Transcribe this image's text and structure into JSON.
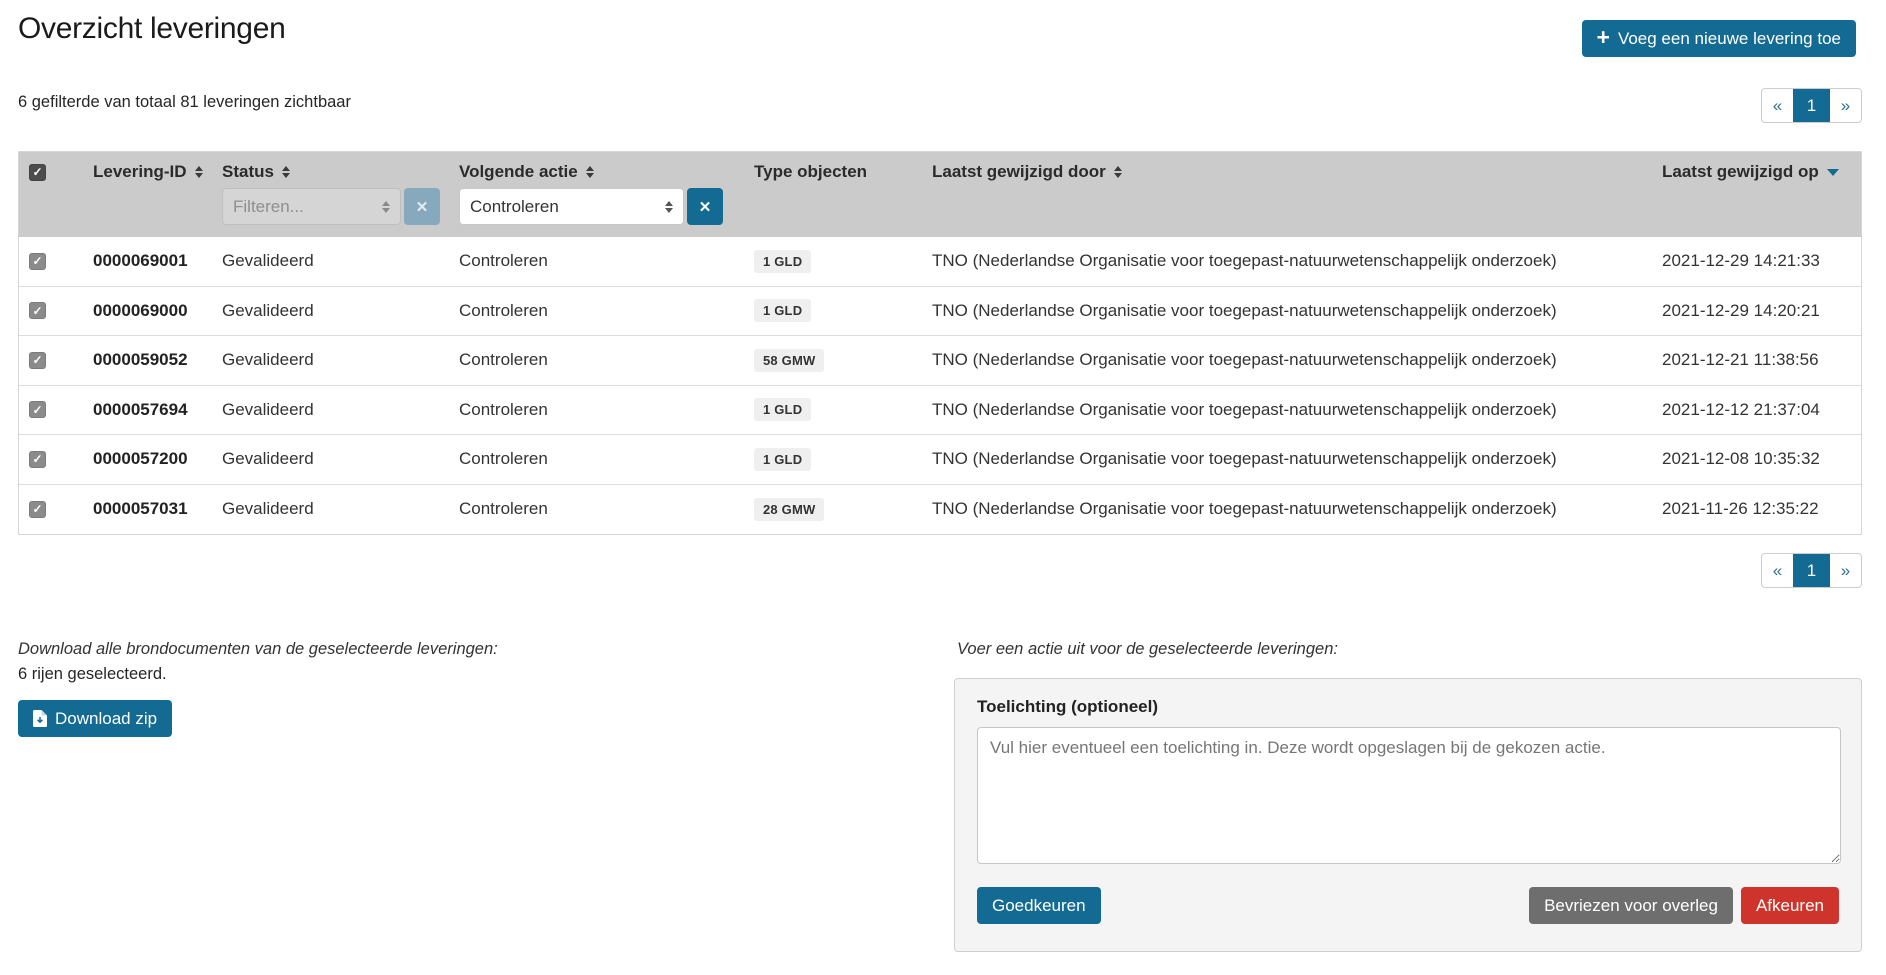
{
  "page": {
    "title": "Overzicht leveringen",
    "filter_summary": "6 gefilterde van totaal 81 leveringen zichtbaar"
  },
  "header": {
    "add_button_label": "Voeg een nieuwe levering toe"
  },
  "icons": {
    "plus": "+",
    "check": "✓",
    "clear": "✕"
  },
  "pagination": {
    "prev": "«",
    "page": "1",
    "next": "»"
  },
  "table": {
    "columns": [
      {
        "label": "Levering-ID",
        "sortable": true
      },
      {
        "label": "Status",
        "sortable": true
      },
      {
        "label": "Volgende actie",
        "sortable": true
      },
      {
        "label": "Type objecten",
        "sortable": false
      },
      {
        "label": "Laatst gewijzigd door",
        "sortable": true
      },
      {
        "label": "Laatst gewijzigd op",
        "sortable": true,
        "sorted": "desc"
      }
    ],
    "filters": {
      "status_placeholder": "Filteren...",
      "action_value": "Controleren"
    },
    "rows": [
      {
        "id": "0000069001",
        "status": "Gevalideerd",
        "next_action": "Controleren",
        "type_objects": "1 GLD",
        "modified_by": "TNO (Nederlandse Organisatie voor toegepast-natuurwetenschappelijk onderzoek)",
        "modified_on": "2021-12-29 14:21:33"
      },
      {
        "id": "0000069000",
        "status": "Gevalideerd",
        "next_action": "Controleren",
        "type_objects": "1 GLD",
        "modified_by": "TNO (Nederlandse Organisatie voor toegepast-natuurwetenschappelijk onderzoek)",
        "modified_on": "2021-12-29 14:20:21"
      },
      {
        "id": "0000059052",
        "status": "Gevalideerd",
        "next_action": "Controleren",
        "type_objects": "58 GMW",
        "modified_by": "TNO (Nederlandse Organisatie voor toegepast-natuurwetenschappelijk onderzoek)",
        "modified_on": "2021-12-21 11:38:56"
      },
      {
        "id": "0000057694",
        "status": "Gevalideerd",
        "next_action": "Controleren",
        "type_objects": "1 GLD",
        "modified_by": "TNO (Nederlandse Organisatie voor toegepast-natuurwetenschappelijk onderzoek)",
        "modified_on": "2021-12-12 21:37:04"
      },
      {
        "id": "0000057200",
        "status": "Gevalideerd",
        "next_action": "Controleren",
        "type_objects": "1 GLD",
        "modified_by": "TNO (Nederlandse Organisatie voor toegepast-natuurwetenschappelijk onderzoek)",
        "modified_on": "2021-12-08 10:35:32"
      },
      {
        "id": "0000057031",
        "status": "Gevalideerd",
        "next_action": "Controleren",
        "type_objects": "28 GMW",
        "modified_by": "TNO (Nederlandse Organisatie voor toegepast-natuurwetenschappelijk onderzoek)",
        "modified_on": "2021-11-26 12:35:22"
      }
    ]
  },
  "download": {
    "instruction": "Download alle brondocumenten van de geselecteerde leveringen:",
    "selected_count": "6 rijen geselecteerd.",
    "button_label": "Download zip"
  },
  "action_panel": {
    "instruction": "Voer een actie uit voor de geselecteerde leveringen:",
    "note_label": "Toelichting (optioneel)",
    "note_placeholder": "Vul hier eventueel een toelichting in. Deze wordt opgeslagen bij de gekozen actie.",
    "approve_label": "Goedkeuren",
    "freeze_label": "Bevriezen voor overleg",
    "reject_label": "Afkeuren"
  },
  "colors": {
    "primary": "#136a92",
    "danger": "#ce342b",
    "neutral_button": "#6e6e6e",
    "table_header_bg": "#cbcbcb"
  }
}
